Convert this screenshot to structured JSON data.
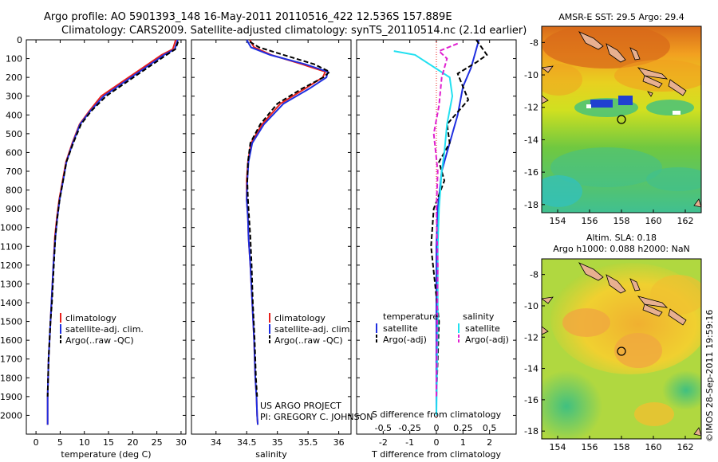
{
  "header": {
    "line1": "Argo profile: AO 5901393_148 16-May-2011 20110516_422 12.536S 157.889E",
    "line2": "Climatology: CARS2009. Satellite-adjusted climatology: synTS_20110514.nc (2.1d earlier)"
  },
  "colors": {
    "climatology": "#e8201c",
    "satellite": "#1f2fe0",
    "argo": "#000000",
    "cyan": "#22e0f0",
    "magenta": "#e020d0"
  },
  "chart_data": [
    {
      "type": "line",
      "xlabel": "temperature (deg C)",
      "ylabel": "",
      "xlim": [
        -2,
        31
      ],
      "ylim": [
        2100,
        0
      ],
      "xticks": [
        0,
        5,
        10,
        15,
        20,
        25,
        30
      ],
      "yticks": [
        0,
        100,
        200,
        300,
        400,
        500,
        600,
        700,
        800,
        900,
        1000,
        1100,
        1200,
        1300,
        1400,
        1500,
        1600,
        1700,
        1800,
        1900,
        2000
      ],
      "legend": {
        "position": "middle-center",
        "entries": [
          "climatology",
          "satellite-adj. clim.",
          "Argo(..raw -QC)"
        ]
      },
      "series": [
        {
          "name": "climatology",
          "color": "#e8201c",
          "x": [
            28.9,
            28.3,
            26,
            22,
            18,
            13.5,
            11,
            9,
            7.5,
            6.2,
            5.5,
            4.8,
            4.3,
            3.9,
            3.6,
            3.2,
            3,
            2.8,
            2.6,
            2.5,
            2.4,
            2.4
          ],
          "y": [
            0,
            50,
            80,
            150,
            220,
            300,
            380,
            450,
            550,
            650,
            750,
            850,
            950,
            1050,
            1200,
            1400,
            1500,
            1600,
            1700,
            1800,
            1900,
            2050
          ]
        },
        {
          "name": "satellite-adj. clim.",
          "color": "#1f2fe0",
          "x": [
            29.3,
            28.7,
            26.5,
            22.5,
            18.5,
            14,
            11.2,
            9.1,
            7.6,
            6.3,
            5.6,
            4.9,
            4.4,
            4,
            3.6,
            3.2,
            3,
            2.8,
            2.6,
            2.5,
            2.4,
            2.4
          ],
          "y": [
            0,
            50,
            80,
            150,
            220,
            300,
            380,
            450,
            550,
            650,
            750,
            850,
            950,
            1050,
            1200,
            1400,
            1500,
            1600,
            1700,
            1800,
            1900,
            2050
          ]
        },
        {
          "name": "Argo(..raw -QC)",
          "color": "#000000",
          "dashed": true,
          "x": [
            29.4,
            28.8,
            27,
            23,
            19,
            14.5,
            11.4,
            9.3,
            7.7,
            6.3,
            5.6,
            4.9,
            4.4,
            4,
            3.7,
            3.3,
            3,
            2.8,
            2.6,
            2.5,
            2.4
          ],
          "y": [
            10,
            50,
            80,
            150,
            220,
            300,
            380,
            450,
            550,
            650,
            750,
            850,
            950,
            1050,
            1200,
            1400,
            1500,
            1600,
            1700,
            1800,
            1900
          ]
        }
      ]
    },
    {
      "type": "line",
      "xlabel": "salinity",
      "ylabel": "",
      "xlim": [
        33.6,
        36.2
      ],
      "ylim": [
        2100,
        0
      ],
      "xticks": [
        34,
        34.5,
        35,
        35.5,
        36
      ],
      "legend": {
        "position": "middle-center",
        "entries": [
          "climatology",
          "satellite-adj. clim.",
          "Argo(..raw -QC)"
        ]
      },
      "series": [
        {
          "name": "climatology",
          "color": "#e8201c",
          "x": [
            34.55,
            34.62,
            34.9,
            35.4,
            35.78,
            35.74,
            35.45,
            35.05,
            34.75,
            34.57,
            34.52,
            34.5,
            34.5,
            34.52,
            34.53,
            34.56,
            34.59,
            34.62,
            34.64,
            34.66,
            34.67,
            34.68
          ],
          "y": [
            0,
            40,
            80,
            130,
            170,
            200,
            260,
            340,
            450,
            550,
            650,
            750,
            850,
            950,
            1050,
            1200,
            1400,
            1600,
            1800,
            1900,
            2000,
            2050
          ]
        },
        {
          "name": "satellite-adj. clim.",
          "color": "#1f2fe0",
          "x": [
            34.5,
            34.57,
            34.88,
            35.45,
            35.82,
            35.8,
            35.52,
            35.1,
            34.78,
            34.59,
            34.53,
            34.51,
            34.5,
            34.52,
            34.53,
            34.56,
            34.59,
            34.62,
            34.64,
            34.66,
            34.67,
            34.68
          ],
          "y": [
            0,
            40,
            80,
            130,
            170,
            200,
            260,
            340,
            450,
            550,
            650,
            750,
            850,
            950,
            1050,
            1200,
            1400,
            1600,
            1800,
            1900,
            2000,
            2050
          ]
        },
        {
          "name": "Argo(..raw -QC)",
          "color": "#000000",
          "dashed": true,
          "x": [
            34.55,
            34.7,
            35.1,
            35.6,
            35.85,
            35.75,
            35.4,
            35.0,
            34.72,
            34.56,
            34.52,
            34.51,
            34.52,
            34.54,
            34.56,
            34.58,
            34.6,
            34.63,
            34.65,
            34.67
          ],
          "y": [
            10,
            40,
            80,
            130,
            170,
            200,
            260,
            340,
            450,
            550,
            650,
            750,
            850,
            950,
            1050,
            1200,
            1400,
            1600,
            1800,
            1900
          ]
        }
      ]
    },
    {
      "type": "line",
      "xlabel": "T difference from climatology",
      "xlabel2": "S difference from climatology",
      "ylabel": "",
      "xlim": [
        -3,
        3
      ],
      "ylim": [
        2100,
        0
      ],
      "xticks_T": [
        -2,
        -1,
        0,
        1,
        2
      ],
      "xticks_S_labels": [
        "-0.5",
        "-0.25",
        "0",
        "0.25",
        "0.5"
      ],
      "xticks_S_pos": [
        -2,
        -1,
        0,
        1,
        2
      ],
      "legend": {
        "position": "middle-center",
        "groups": [
          "temperature",
          "salinity"
        ],
        "entries": [
          "satellite",
          "Argo(-adj)",
          "satellite",
          "Argo(-adj)"
        ]
      },
      "series": [
        {
          "name": "satellite",
          "group": "temperature",
          "color": "#1f2fe0",
          "x": [
            1.6,
            1.5,
            1.4,
            1.3,
            1.0,
            0.8,
            0.6,
            0.4,
            0.2,
            0.05,
            0,
            0,
            0
          ],
          "y": [
            0,
            50,
            100,
            150,
            250,
            400,
            500,
            600,
            700,
            900,
            1100,
            1500,
            2000
          ]
        },
        {
          "name": "Argo(-adj)",
          "group": "temperature",
          "color": "#000000",
          "dashed": true,
          "x": [
            1.5,
            1.9,
            1.5,
            0.8,
            1.2,
            0.4,
            0.5,
            0.1,
            0.3,
            -0.1,
            -0.2,
            0.1,
            0
          ],
          "y": [
            0,
            80,
            120,
            180,
            320,
            450,
            550,
            650,
            750,
            900,
            1100,
            1500,
            1900
          ]
        },
        {
          "name": "satellite",
          "group": "salinity",
          "color": "#22e0f0",
          "x": [
            -1.6,
            -1.2,
            -0.8,
            0.5,
            0.6,
            0.4,
            0.3,
            0.2,
            0.1,
            0.05,
            0.05,
            0
          ],
          "y": [
            60,
            70,
            80,
            200,
            300,
            450,
            600,
            700,
            900,
            1100,
            1500,
            2000
          ]
        },
        {
          "name": "Argo(-adj)",
          "group": "salinity",
          "color": "#e020d0",
          "dashed": true,
          "x": [
            0.8,
            0.1,
            0.4,
            0.2,
            0.1,
            -0.1,
            0.05,
            0,
            0.05,
            0
          ],
          "y": [
            20,
            60,
            100,
            200,
            350,
            500,
            700,
            900,
            1200,
            1900
          ]
        }
      ]
    }
  ],
  "maps": [
    {
      "title": "AMSR-E SST: 29.5 Argo: 29.4",
      "xticks": [
        "154",
        "156",
        "158",
        "160",
        "162"
      ],
      "yticks": [
        "-8",
        "-10",
        "-12",
        "-14",
        "-16",
        "-18"
      ],
      "lon_range": [
        153,
        163
      ],
      "lat_range": [
        -18.5,
        -7
      ],
      "argo_position": [
        157.889,
        -12.536
      ]
    },
    {
      "title_line1": "Altim. SLA: 0.18",
      "title_line2": "Argo h1000: 0.088 h2000: NaN",
      "xticks": [
        "154",
        "156",
        "158",
        "160",
        "162"
      ],
      "yticks": [
        "-8",
        "-10",
        "-12",
        "-14",
        "-16",
        "-18"
      ],
      "lon_range": [
        153,
        163
      ],
      "lat_range": [
        -18.5,
        -7
      ],
      "argo_position": [
        157.889,
        -12.536
      ]
    }
  ],
  "annotations": {
    "project": "US ARGO PROJECT",
    "pi": "PI: GREGORY C. JOHNSON",
    "credit": "©IMOS 28-Sep-2011 19:59:16"
  }
}
